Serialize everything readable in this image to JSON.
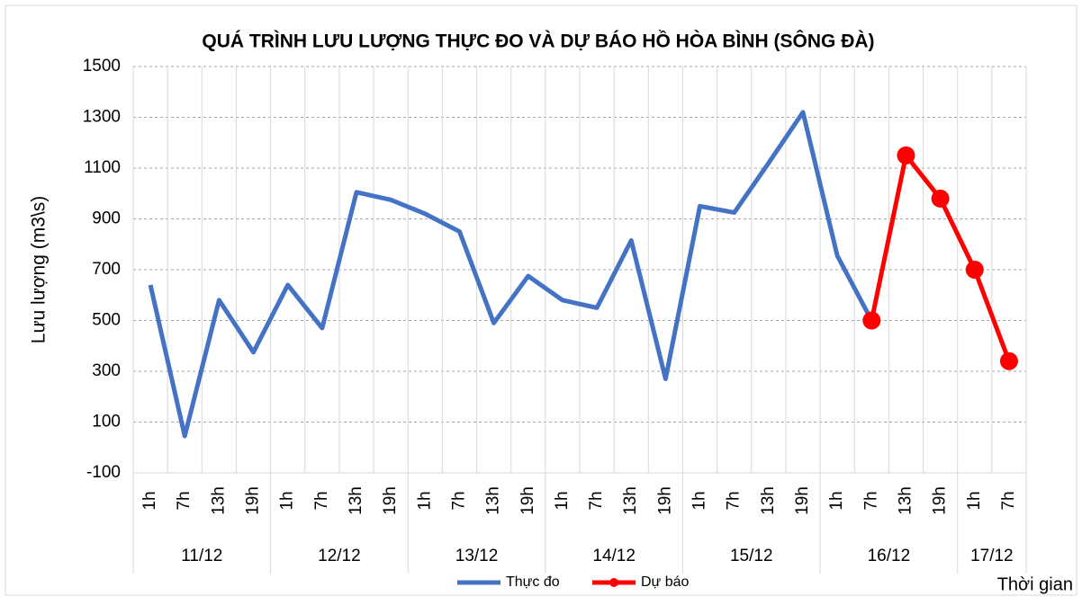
{
  "chart_data": {
    "type": "line",
    "title": "QUÁ TRÌNH LƯU LƯỢNG THỰC ĐO VÀ DỰ BÁO HỒ HÒA BÌNH (SÔNG ĐÀ)",
    "y_label": "Lưu lượng (m3\\s)",
    "x_label": "Thời gian",
    "categories": [
      "1h",
      "7h",
      "13h",
      "19h",
      "1h",
      "7h",
      "13h",
      "19h",
      "1h",
      "7h",
      "13h",
      "19h",
      "1h",
      "7h",
      "13h",
      "19h",
      "1h",
      "7h",
      "13h",
      "19h",
      "1h",
      "7h",
      "13h",
      "19h",
      "1h",
      "7h"
    ],
    "groups": [
      {
        "label": "11/12",
        "count": 4
      },
      {
        "label": "12/12",
        "count": 4
      },
      {
        "label": "13/12",
        "count": 4
      },
      {
        "label": "14/12",
        "count": 4
      },
      {
        "label": "15/12",
        "count": 4
      },
      {
        "label": "16/12",
        "count": 4
      },
      {
        "label": "17/12",
        "count": 2
      }
    ],
    "series": [
      {
        "name": "Thực đo",
        "color": "#4472c4",
        "marker": false,
        "values": [
          640,
          45,
          580,
          375,
          640,
          470,
          1005,
          975,
          920,
          850,
          490,
          675,
          580,
          550,
          815,
          270,
          950,
          925,
          1120,
          1320,
          755,
          500,
          null,
          null,
          null,
          null
        ]
      },
      {
        "name": "Dự báo",
        "color": "#ff0000",
        "marker": true,
        "values": [
          null,
          null,
          null,
          null,
          null,
          null,
          null,
          null,
          null,
          null,
          null,
          null,
          null,
          null,
          null,
          null,
          null,
          null,
          null,
          null,
          null,
          500,
          1150,
          980,
          700,
          340
        ]
      }
    ],
    "ylim": [
      -100,
      1500
    ],
    "yticks": [
      -100,
      100,
      300,
      500,
      700,
      900,
      1100,
      1300,
      1500
    ],
    "grid": true
  }
}
